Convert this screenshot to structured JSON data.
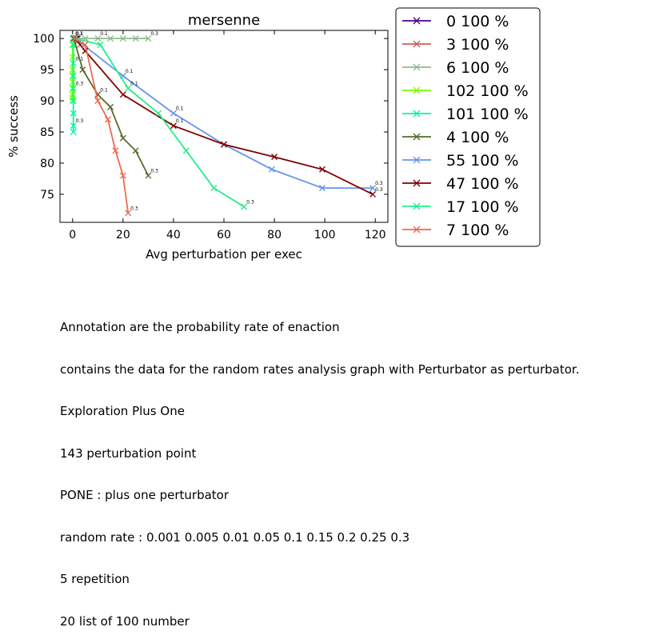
{
  "chart_data": {
    "type": "line",
    "title": "mersenne",
    "xlabel": "Avg perturbation per exec",
    "ylabel": "% success",
    "xlim": [
      -5,
      125
    ],
    "ylim": [
      70.5,
      101.3
    ],
    "xticks": [
      0,
      20,
      40,
      60,
      80,
      100,
      120
    ],
    "yticks": [
      75,
      80,
      85,
      90,
      95,
      100
    ],
    "grid": false,
    "legend_position": "outside-right",
    "marker": "x",
    "series": [
      {
        "name": "0 100 %",
        "color": "#4b0082",
        "x": [
          0.2,
          0.5,
          1.0,
          1.5,
          2.0
        ],
        "y": [
          100,
          100,
          100,
          100,
          100
        ],
        "labels": []
      },
      {
        "name": "3 100 %",
        "color": "#cd5c5c",
        "x": [
          0.2,
          0.5,
          1.0,
          2.0,
          3.0
        ],
        "y": [
          100,
          100,
          100,
          99.5,
          99
        ],
        "labels": []
      },
      {
        "name": "6 100 %",
        "color": "#8fbc8f",
        "x": [
          0.1,
          0.4,
          1,
          5,
          10,
          15,
          20,
          25,
          30
        ],
        "y": [
          100,
          100,
          100,
          100,
          100,
          100,
          100,
          100,
          100
        ],
        "labels": [
          "0.1",
          "",
          "",
          "",
          "0.1",
          "",
          "",
          "",
          "0.3"
        ]
      },
      {
        "name": "102 100 %",
        "color": "#7cfc00",
        "x": [
          0,
          0,
          0,
          0,
          0,
          0,
          0,
          0,
          0
        ],
        "y": [
          99,
          97,
          95,
          94,
          93,
          92,
          91,
          90.5,
          90
        ],
        "labels": []
      },
      {
        "name": "101 100 %",
        "color": "#00fa9a",
        "x": [
          0.3,
          0.3,
          0.3,
          0.3,
          0.3,
          0.3,
          0.3,
          0.3,
          0.3
        ],
        "y": [
          100,
          99,
          96,
          94,
          92,
          90,
          88,
          86,
          85
        ],
        "labels": [
          "0.1",
          "",
          "0.1",
          "",
          "0.3",
          "",
          "",
          "0.3",
          ""
        ]
      },
      {
        "name": "4 100 %",
        "color": "#556b2f",
        "x": [
          0.5,
          4,
          10,
          15,
          20,
          25,
          30
        ],
        "y": [
          100,
          95,
          91,
          89,
          84,
          82,
          78
        ],
        "labels": [
          "",
          "",
          "0.1",
          "",
          "",
          "",
          "0.3"
        ]
      },
      {
        "name": "55 100 %",
        "color": "#6495ed",
        "x": [
          1,
          20,
          40,
          60,
          79,
          99,
          119
        ],
        "y": [
          100,
          94,
          88,
          83,
          79,
          76,
          76
        ],
        "labels": [
          "",
          "0.1",
          "0.1",
          "",
          "",
          "",
          "0.3"
        ]
      },
      {
        "name": "47 100 %",
        "color": "#800000",
        "x": [
          1,
          5,
          20,
          40,
          60,
          80,
          99,
          119
        ],
        "y": [
          100,
          98,
          91,
          86,
          83,
          81,
          79,
          75
        ],
        "labels": [
          "",
          "",
          "",
          "0.1",
          "",
          "",
          "",
          "0.3"
        ]
      },
      {
        "name": "17 100 %",
        "color": "#22ee88",
        "x": [
          1,
          11,
          22,
          34,
          45,
          56,
          68
        ],
        "y": [
          100,
          99,
          92,
          88,
          82,
          76,
          73
        ],
        "labels": [
          "",
          "",
          "0.1",
          "",
          "",
          "",
          "0.3"
        ]
      },
      {
        "name": "7 100 %",
        "color": "#ee6a50",
        "x": [
          1,
          5,
          10,
          14,
          17,
          20,
          22
        ],
        "y": [
          100,
          99,
          90,
          87,
          82,
          78,
          72
        ],
        "labels": [
          "",
          "",
          "",
          "",
          "",
          "",
          "0.3"
        ]
      }
    ]
  },
  "caption_lines": [
    "Annotation are the probability rate of enaction",
    "contains the data for the random rates analysis graph with Perturbator as perturbator.",
    "Exploration Plus One",
    "143 perturbation point",
    "PONE : plus one perturbator",
    "random rate : 0.001 0.005 0.01 0.05 0.1 0.15 0.2 0.25 0.3",
    "5 repetition",
    "20 list of 100 number"
  ]
}
